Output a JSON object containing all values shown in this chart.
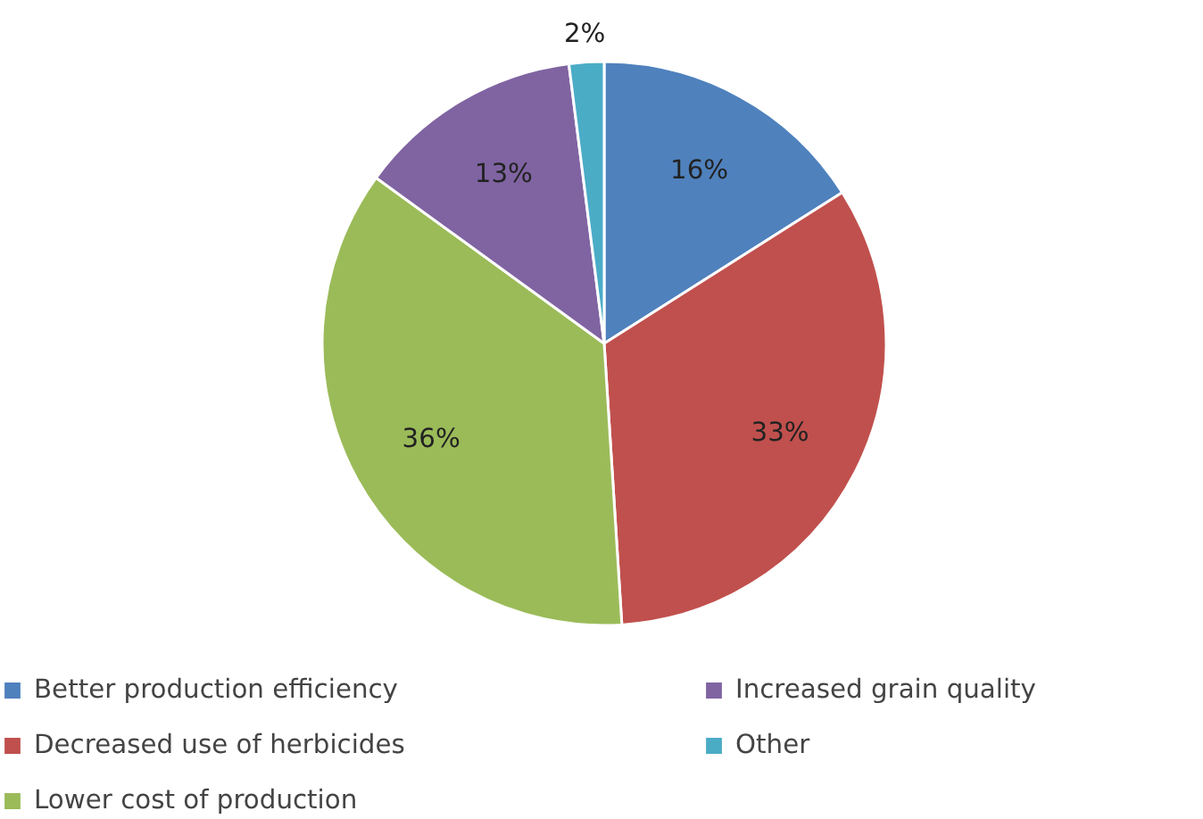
{
  "chart_data": {
    "type": "pie",
    "categories": [
      "Better production efficiency",
      "Decreased use of herbicides",
      "Lower cost of production",
      "Increased grain quality",
      "Other"
    ],
    "values": [
      16,
      33,
      36,
      13,
      2
    ],
    "colors": [
      "#4f81bd",
      "#c0504d",
      "#9bbb59",
      "#8064a2",
      "#4bacc6"
    ],
    "value_labels": [
      "16%",
      "33%",
      "36%",
      "13%",
      "2%"
    ],
    "legend": "bottom"
  }
}
